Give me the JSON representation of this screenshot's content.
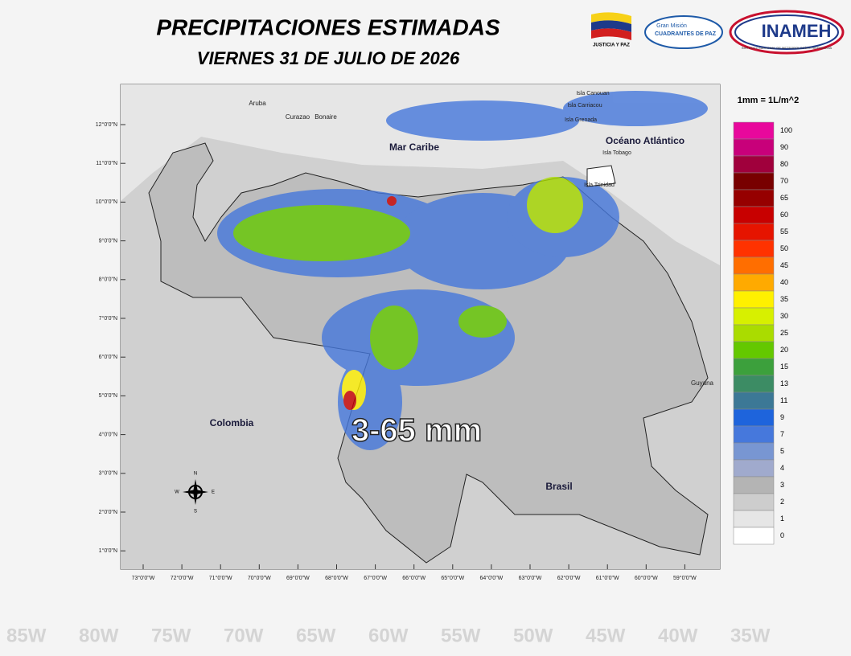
{
  "header": {
    "title": "PRECIPITACIONES ESTIMADAS",
    "subtitle": "VIERNES 31 DE JULIO DE 2026"
  },
  "logos": {
    "flag_caption": "JUSTICIA Y PAZ",
    "mission_top": "Gran Misión",
    "mission_name": "CUADRANTES DE PAZ",
    "inameh": "INAMEH",
    "inameh_caption": "INSTITUTO NACIONAL DE METEOROLOGÍA E HIDROLOGÍA"
  },
  "legend": {
    "unit": "1mm = 1L/m^2",
    "labels": [
      "100",
      "90",
      "80",
      "70",
      "65",
      "60",
      "55",
      "50",
      "45",
      "40",
      "35",
      "30",
      "25",
      "20",
      "15",
      "13",
      "11",
      "9",
      "7",
      "5",
      "4",
      "3",
      "2",
      "1",
      "0"
    ],
    "colors": [
      "#e8089c",
      "#c8007a",
      "#a0003c",
      "#780000",
      "#960000",
      "#c80000",
      "#e61400",
      "#ff3200",
      "#ff6e00",
      "#ffaa00",
      "#fff000",
      "#d7f000",
      "#aadc00",
      "#64c800",
      "#3ca03c",
      "#3c8c64",
      "#3c7896",
      "#1e64dc",
      "#4678dc",
      "#7896d2",
      "#a0aacd",
      "#b4b4b4",
      "#cdcdcd",
      "#e6e6e6",
      "#ffffff"
    ]
  },
  "map": {
    "lat_ticks": [
      "12°0'0\"N",
      "11°0'0\"N",
      "10°0'0\"N",
      "9°0'0\"N",
      "8°0'0\"N",
      "7°0'0\"N",
      "6°0'0\"N",
      "5°0'0\"N",
      "4°0'0\"N",
      "3°0'0\"N",
      "2°0'0\"N",
      "1°0'0\"N"
    ],
    "lon_ticks": [
      "73°0'0\"W",
      "72°0'0\"W",
      "71°0'0\"W",
      "70°0'0\"W",
      "69°0'0\"W",
      "68°0'0\"W",
      "67°0'0\"W",
      "66°0'0\"W",
      "65°0'0\"W",
      "64°0'0\"W",
      "63°0'0\"W",
      "62°0'0\"W",
      "61°0'0\"W",
      "60°0'0\"W",
      "59°0'0\"W"
    ],
    "places": {
      "mar_caribe": "Mar Caribe",
      "oceano": "Océano Atlántico",
      "colombia": "Colombia",
      "brasil": "Brasil",
      "guyana": "Guyana",
      "aruba": "Aruba",
      "curazao": "Curazao",
      "bonaire": "Bonaire",
      "canouan": "Isla Canouan",
      "carriacou": "Isla Carriacou",
      "grenada": "Isla Grenada",
      "tobago": "Isla Tobago",
      "trinidad": "Isla Trinidad"
    },
    "compass": {
      "n": "N",
      "s": "S",
      "e": "E",
      "w": "W"
    },
    "range_label": "3-65 mm"
  },
  "background": {
    "longitudes": [
      "85W",
      "80W",
      "75W",
      "70W",
      "65W",
      "60W",
      "55W",
      "50W",
      "45W",
      "40W",
      "35W"
    ]
  }
}
